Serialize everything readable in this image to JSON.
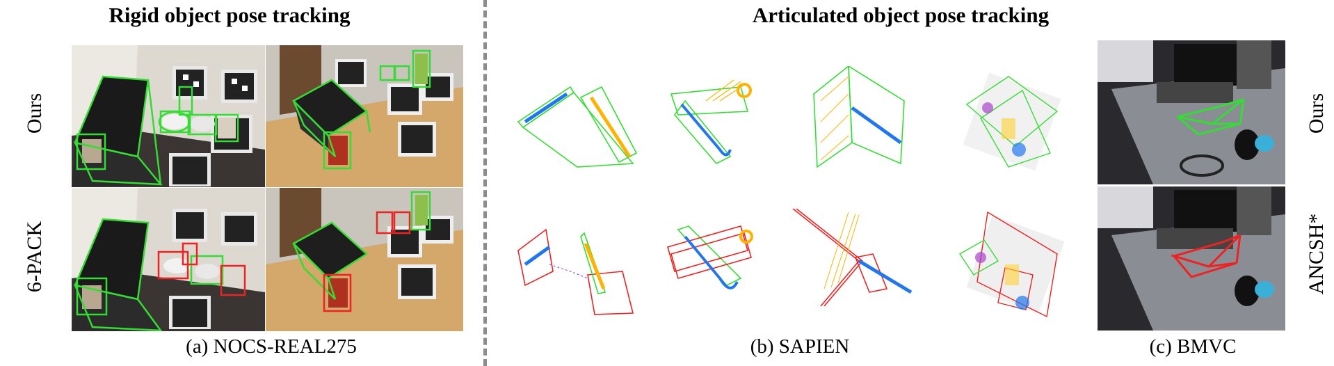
{
  "headers": {
    "rigid": "Rigid object pose tracking",
    "articulated": "Articulated object pose tracking"
  },
  "row_labels": {
    "left_top": "Ours",
    "left_bottom": "6-PACK",
    "right_top": "Ours",
    "right_bottom": "ANCSH*"
  },
  "captions": {
    "a": "(a) NOCS-REAL275",
    "b": "(b) SAPIEN",
    "c": "(c) BMVC"
  },
  "colors": {
    "ours_box": "#33dd33",
    "baseline_box": "#ee2222",
    "part_blue": "#2277ee",
    "part_orange": "#ffb300",
    "divider": "#8c8c8c"
  }
}
